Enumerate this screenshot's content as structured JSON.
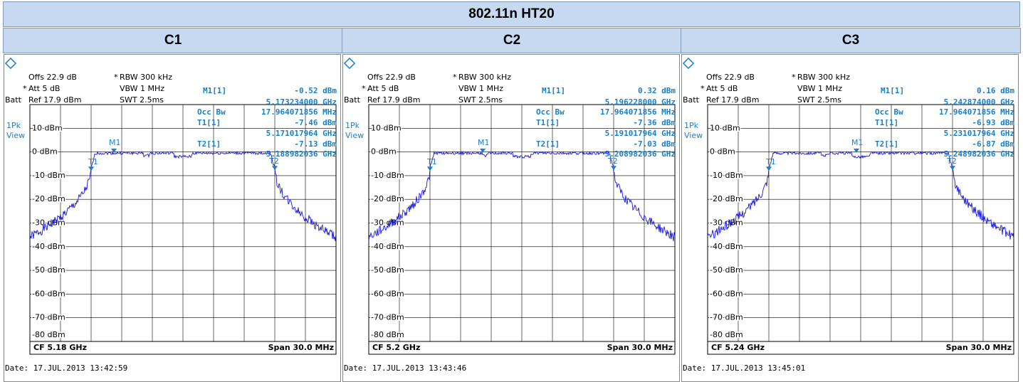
{
  "title": "802.11n HT20",
  "asterisk": "*",
  "trace_labels": {
    "m1": "M1",
    "t1": "T1",
    "t2": "T2"
  },
  "y_labels": [
    "10 dBm",
    "0 dBm",
    "-10 dBm",
    "-20 dBm",
    "-30 dBm",
    "-40 dBm",
    "-50 dBm",
    "-60 dBm",
    "-70 dBm",
    "-80 dBm"
  ],
  "panels": [
    {
      "heading": "C1",
      "offs": "Offs 22.9 dB",
      "rbw": "RBW 300 kHz",
      "att": "Att  5 dB",
      "vbw": "VBW 1 MHz",
      "batt": "Batt",
      "ref": "Ref  17.9 dBm",
      "swt": "SWT 2.5ms",
      "mode": "1Pk",
      "view": "View",
      "m1": "M1[1]",
      "m1_level": "-0.52 dBm",
      "m1_freq": "5.173234000 GHz",
      "occ": "Occ Bw",
      "occ_bw": "17.964071856 MHz",
      "t1": "T1[1]",
      "t1_level": "-7.46 dBm",
      "t1_freq": "5.171017964 GHz",
      "t2": "T2[1]",
      "t2_level": "-7.13 dBm",
      "t2_freq": "5.188982036 GHz",
      "cf": "CF 5.18 GHz",
      "span": "Span 30.0 MHz",
      "date": "Date: 17.JUL.2013  13:42:59"
    },
    {
      "heading": "C2",
      "offs": "Offs 22.9 dB",
      "rbw": "RBW 300 kHz",
      "att": "Att  5 dB",
      "vbw": "VBW 1 MHz",
      "batt": "Batt",
      "ref": "Ref  17.9 dBm",
      "swt": "SWT 2.5ms",
      "mode": "1Pk",
      "view": "View",
      "m1": "M1[1]",
      "m1_level": "0.32 dBm",
      "m1_freq": "5.196228000 GHz",
      "occ": "Occ Bw",
      "occ_bw": "17.964071856 MHz",
      "t1": "T1[1]",
      "t1_level": "-7.36 dBm",
      "t1_freq": "5.191017964 GHz",
      "t2": "T2[1]",
      "t2_level": "-7.03 dBm",
      "t2_freq": "5.208982036 GHz",
      "cf": "CF 5.2 GHz",
      "span": "Span 30.0 MHz",
      "date": "Date: 17.JUL.2013  13:43:46"
    },
    {
      "heading": "C3",
      "offs": "Offs 22.9 dB",
      "rbw": "RBW 300 kHz",
      "att": "Att  5 dB",
      "vbw": "VBW 1 MHz",
      "batt": "Batt",
      "ref": "Ref  17.9 dBm",
      "swt": "SWT 2.5ms",
      "mode": "1Pk",
      "view": "View",
      "m1": "M1[1]",
      "m1_level": "0.16 dBm",
      "m1_freq": "5.242874000 GHz",
      "occ": "Occ Bw",
      "occ_bw": "17.964071856 MHz",
      "t1": "T1[1]",
      "t1_level": "-6.93 dBm",
      "t1_freq": "5.231017964 GHz",
      "t2": "T2[1]",
      "t2_level": "-6.87 dBm",
      "t2_freq": "5.248982036 GHz",
      "cf": "CF 5.24 GHz",
      "span": "Span 30.0 MHz",
      "date": "Date: 17.JUL.2013  13:45:01"
    }
  ]
}
